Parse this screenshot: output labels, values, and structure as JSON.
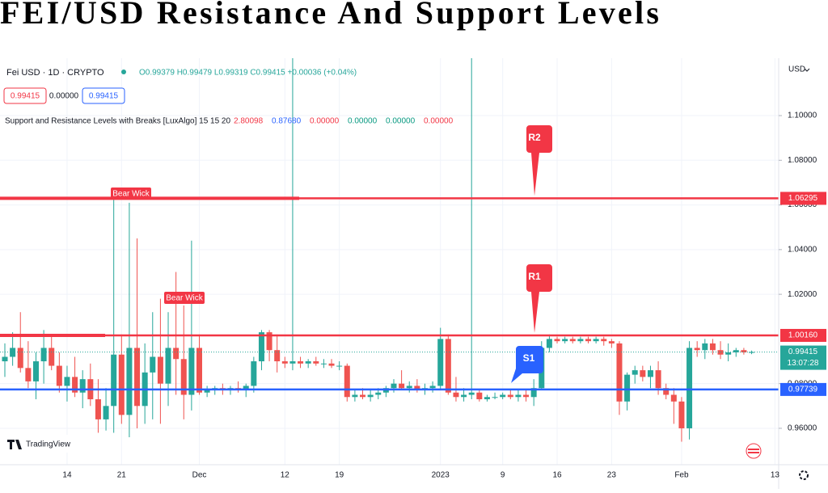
{
  "header": {
    "title": "FEI/USD Resistance And Support Levels"
  },
  "legend": {
    "symbol": "Fei USD · 1D · CRYPTO",
    "ohlc": "O0.99379 H0.99479 L0.99319 C0.99415 +0.00036 (+0.04%)",
    "bid": "0.99415",
    "spread": "0.00000",
    "ask": "0.99415",
    "indicator": "Support and Resistance Levels with Breaks [LuxAlgo] 15 15 20",
    "indicator_values": [
      "2.80098",
      "0.87680",
      "0.00000",
      "0.00000",
      "0.00000",
      "0.00000"
    ]
  },
  "ui": {
    "currency": "USD",
    "logo": "TradingView"
  },
  "chart_data": {
    "type": "candlestick",
    "categories": [
      null,
      null,
      null,
      null,
      null,
      null,
      null,
      null,
      "14",
      null,
      null,
      null,
      null,
      null,
      null,
      "21",
      null,
      null,
      null,
      null,
      null,
      null,
      null,
      null,
      null,
      "Dec",
      null,
      null,
      null,
      null,
      null,
      null,
      null,
      null,
      null,
      null,
      "12",
      null,
      null,
      null,
      null,
      null,
      null,
      "19",
      null,
      null,
      null,
      null,
      null,
      null,
      null,
      null,
      null,
      null,
      null,
      null,
      "2023",
      null,
      null,
      null,
      null,
      null,
      null,
      null,
      "9",
      null,
      null,
      null,
      null,
      null,
      null,
      "16",
      null,
      null,
      null,
      null,
      null,
      null,
      "23",
      null,
      null,
      null,
      null,
      null,
      null,
      null,
      null,
      "Feb",
      null,
      null,
      null,
      null,
      null,
      null,
      null,
      null,
      null,
      null,
      null,
      "13"
    ],
    "open": [
      0.99,
      0.992,
      0.996,
      0.987,
      0.981,
      0.99,
      0.996,
      0.988,
      0.979,
      0.983,
      0.976,
      0.982,
      0.973,
      0.964,
      0.97,
      0.993,
      0.966,
      0.996,
      0.97,
      0.985,
      0.992,
      0.98,
      0.996,
      0.991,
      0.975,
      0.996,
      0.976,
      0.977,
      0.978,
      0.977,
      0.978,
      0.977,
      0.979,
      0.99,
      1.003,
      0.995,
      0.99,
      0.989,
      0.99,
      0.989,
      0.99,
      0.989,
      0.989,
      0.988,
      0.988,
      0.974,
      0.975,
      0.974,
      0.975,
      0.976,
      0.978,
      0.98,
      0.978,
      0.979,
      0.977,
      0.978,
      0.979,
      1.0,
      0.976,
      0.974,
      0.975,
      0.976,
      0.973,
      0.974,
      0.974,
      0.975,
      0.974,
      0.975,
      0.974,
      0.978,
      0.996,
      1.0,
      0.999,
      1.0,
      0.999,
      1.0,
      0.999,
      1.0,
      0.999,
      0.998,
      0.972,
      0.984,
      0.986,
      0.983,
      0.986,
      0.978,
      0.975,
      0.972,
      0.96,
      0.996,
      0.995,
      0.998,
      0.995,
      0.993,
      0.994,
      0.995,
      0.994,
      null,
      null,
      null
    ],
    "high": [
      0.998,
      1.003,
      1.012,
      0.999,
      0.994,
      1.004,
      1.001,
      0.994,
      0.988,
      0.992,
      0.986,
      0.989,
      0.982,
      0.978,
      1.063,
      1.002,
      1.061,
      1.045,
      0.998,
      1.012,
      1.018,
      1.012,
      1.03,
      1.015,
      1.044,
      1.002,
      0.979,
      0.979,
      0.98,
      0.979,
      0.981,
      0.98,
      0.992,
      1.004,
      1.004,
      1.002,
      0.992,
      1.13,
      0.992,
      0.991,
      0.992,
      0.991,
      0.991,
      0.99,
      0.989,
      0.977,
      0.978,
      0.977,
      0.978,
      0.979,
      0.982,
      0.986,
      0.981,
      0.982,
      0.98,
      0.981,
      1.005,
      1.002,
      0.983,
      0.978,
      1.13,
      0.977,
      0.975,
      0.976,
      0.976,
      0.977,
      0.977,
      0.977,
      0.982,
      0.999,
      1.002,
      1.001,
      1.001,
      1.001,
      1.001,
      1.001,
      1.001,
      1.001,
      1.0,
      0.999,
      0.985,
      0.988,
      0.988,
      0.988,
      0.99,
      0.98,
      0.978,
      0.974,
      0.999,
      0.999,
      1.0,
      1.0,
      0.999,
      0.998,
      0.996,
      0.996,
      0.9948,
      null,
      null,
      null
    ],
    "low": [
      0.983,
      0.988,
      0.985,
      0.978,
      0.973,
      0.98,
      0.986,
      0.976,
      0.972,
      0.974,
      0.969,
      0.97,
      0.958,
      0.959,
      0.958,
      0.962,
      0.956,
      0.96,
      0.962,
      0.964,
      0.962,
      0.97,
      0.975,
      0.964,
      0.968,
      0.975,
      0.974,
      0.975,
      0.975,
      0.975,
      0.976,
      0.974,
      0.976,
      0.986,
      0.99,
      0.985,
      0.987,
      0.986,
      0.987,
      0.987,
      0.988,
      0.987,
      0.987,
      0.986,
      0.972,
      0.972,
      0.973,
      0.972,
      0.973,
      0.974,
      0.976,
      0.977,
      0.976,
      0.976,
      0.975,
      0.976,
      0.977,
      0.975,
      0.972,
      0.972,
      0.973,
      0.972,
      0.972,
      0.973,
      0.973,
      0.973,
      0.972,
      0.972,
      0.97,
      0.977,
      0.994,
      0.998,
      0.998,
      0.998,
      0.998,
      0.998,
      0.998,
      0.997,
      0.996,
      0.966,
      0.968,
      0.98,
      0.981,
      0.978,
      0.975,
      0.973,
      0.962,
      0.954,
      0.955,
      0.992,
      0.991,
      0.993,
      0.991,
      0.99,
      0.992,
      0.993,
      0.9932,
      null,
      null,
      null
    ],
    "close": [
      0.992,
      0.996,
      0.987,
      0.981,
      0.99,
      0.996,
      0.988,
      0.979,
      0.983,
      0.976,
      0.982,
      0.973,
      0.964,
      0.97,
      0.993,
      0.966,
      0.996,
      0.97,
      0.985,
      0.992,
      0.98,
      0.996,
      0.991,
      0.975,
      0.996,
      0.976,
      0.977,
      0.978,
      0.977,
      0.978,
      0.977,
      0.979,
      0.99,
      1.003,
      0.995,
      0.99,
      0.989,
      0.99,
      0.989,
      0.99,
      0.989,
      0.989,
      0.988,
      0.988,
      0.974,
      0.975,
      0.974,
      0.975,
      0.976,
      0.978,
      0.98,
      0.978,
      0.979,
      0.977,
      0.978,
      0.979,
      1.0,
      0.976,
      0.974,
      0.975,
      0.976,
      0.973,
      0.974,
      0.974,
      0.975,
      0.974,
      0.975,
      0.974,
      0.978,
      0.996,
      1.0,
      0.999,
      1.0,
      0.999,
      1.0,
      0.999,
      1.0,
      0.999,
      0.998,
      0.972,
      0.984,
      0.986,
      0.983,
      0.986,
      0.978,
      0.975,
      0.972,
      0.96,
      0.996,
      0.995,
      0.998,
      0.995,
      0.993,
      0.994,
      0.995,
      0.994,
      0.99415,
      null,
      null,
      null
    ],
    "up_color": "#26a69a",
    "down_color": "#ef5350",
    "ylim": [
      0.9437,
      1.1257
    ],
    "yticks": [
      {
        "value": 0.96,
        "label": "0.96000"
      },
      {
        "value": 0.98,
        "label": "0.98000"
      },
      {
        "value": 1.02,
        "label": "1.02000"
      },
      {
        "value": 1.04,
        "label": "1.04000"
      },
      {
        "value": 1.06,
        "label": "1.06000"
      },
      {
        "value": 1.08,
        "label": "1.08000"
      },
      {
        "value": 1.1,
        "label": "1.10000"
      }
    ],
    "levels": {
      "names": [
        "R2",
        "R1",
        "S1"
      ],
      "values": [
        1.06295,
        1.0016,
        0.97739
      ],
      "value_labels": [
        "1.06295",
        "1.00160",
        "0.97739"
      ],
      "colors": [
        "#f23645",
        "#f23645",
        "#2962ff"
      ]
    },
    "annotations": [
      "Bear Wick",
      "Bear Wick"
    ],
    "last_price": {
      "value": 0.99415,
      "label": "0.99415",
      "countdown": "13:07:28",
      "color": "#26a69a"
    }
  }
}
